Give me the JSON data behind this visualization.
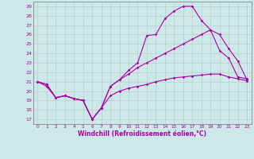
{
  "xlabel": "Windchill (Refroidissement éolien,°C)",
  "background_color": "#cce8e8",
  "line_color": "#aa00aa",
  "grid_color": "#bbcccc",
  "xlim": [
    -0.5,
    23.5
  ],
  "ylim": [
    16.5,
    29.5
  ],
  "yticks": [
    17,
    18,
    19,
    20,
    21,
    22,
    23,
    24,
    25,
    26,
    27,
    28,
    29
  ],
  "xticks": [
    0,
    1,
    2,
    3,
    4,
    5,
    6,
    7,
    8,
    9,
    10,
    11,
    12,
    13,
    14,
    15,
    16,
    17,
    18,
    19,
    20,
    21,
    22,
    23
  ],
  "line1_x": [
    0,
    1,
    2,
    3,
    4,
    5,
    6,
    7,
    8,
    9,
    10,
    11,
    12,
    13,
    14,
    15,
    16,
    17,
    18,
    19,
    20,
    21,
    22,
    23
  ],
  "line1_y": [
    21.0,
    20.7,
    19.3,
    19.5,
    19.2,
    19.0,
    17.0,
    18.2,
    20.5,
    21.2,
    22.2,
    23.0,
    25.9,
    26.0,
    27.7,
    28.5,
    29.0,
    29.0,
    27.5,
    26.5,
    24.3,
    23.5,
    21.5,
    21.3
  ],
  "line2_x": [
    0,
    1,
    2,
    3,
    4,
    5,
    6,
    7,
    8,
    9,
    10,
    11,
    12,
    13,
    14,
    15,
    16,
    17,
    18,
    19,
    20,
    21,
    22,
    23
  ],
  "line2_y": [
    21.0,
    20.7,
    19.3,
    19.5,
    19.2,
    19.0,
    17.0,
    18.2,
    20.5,
    21.2,
    21.8,
    22.5,
    23.0,
    23.5,
    24.0,
    24.5,
    25.0,
    25.5,
    26.0,
    26.5,
    26.0,
    24.5,
    23.2,
    21.2
  ],
  "line3_x": [
    0,
    1,
    2,
    3,
    4,
    5,
    6,
    7,
    8,
    9,
    10,
    11,
    12,
    13,
    14,
    15,
    16,
    17,
    18,
    19,
    20,
    21,
    22,
    23
  ],
  "line3_y": [
    21.0,
    20.5,
    19.3,
    19.5,
    19.2,
    19.0,
    17.0,
    18.2,
    19.5,
    20.0,
    20.3,
    20.5,
    20.7,
    21.0,
    21.2,
    21.4,
    21.5,
    21.6,
    21.7,
    21.8,
    21.8,
    21.5,
    21.3,
    21.1
  ]
}
